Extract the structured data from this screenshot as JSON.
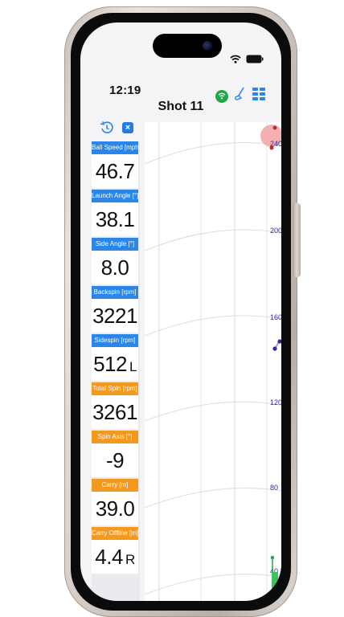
{
  "status_bar": {
    "time": "12:19"
  },
  "nav": {
    "title": "Shot 11"
  },
  "toolbar": {
    "close_label": "×"
  },
  "metrics": [
    {
      "label": "Ball Speed [mph]",
      "value": "46.7",
      "dir": "",
      "color": "#2a86e8"
    },
    {
      "label": "Launch Angle [°]",
      "value": "38.1",
      "dir": "",
      "color": "#2a86e8"
    },
    {
      "label": "Side Angle [°]",
      "value": "8.0",
      "dir": "",
      "color": "#2a86e8"
    },
    {
      "label": "Backspin [rpm]",
      "value": "3221",
      "dir": "",
      "color": "#2a86e8"
    },
    {
      "label": "Sidespin [rpm]",
      "value": "512",
      "dir": "L",
      "color": "#2a86e8"
    },
    {
      "label": "Total Spin [rpm]",
      "value": "3261",
      "dir": "",
      "color": "#f39a1e"
    },
    {
      "label": "Spin Axis [°]",
      "value": "-9",
      "dir": "",
      "color": "#f39a1e"
    },
    {
      "label": "Carry [m]",
      "value": "39.0",
      "dir": "",
      "color": "#f39a1e"
    },
    {
      "label": "Carry Offline [m]",
      "value": "4.4",
      "dir": "R",
      "color": "#f39a1e"
    }
  ],
  "chart": {
    "distance_labels": [
      "240",
      "200",
      "160",
      "120",
      "80",
      "40"
    ],
    "accent_color": "#2b2b9a",
    "target_color": "#f3a3a3"
  }
}
